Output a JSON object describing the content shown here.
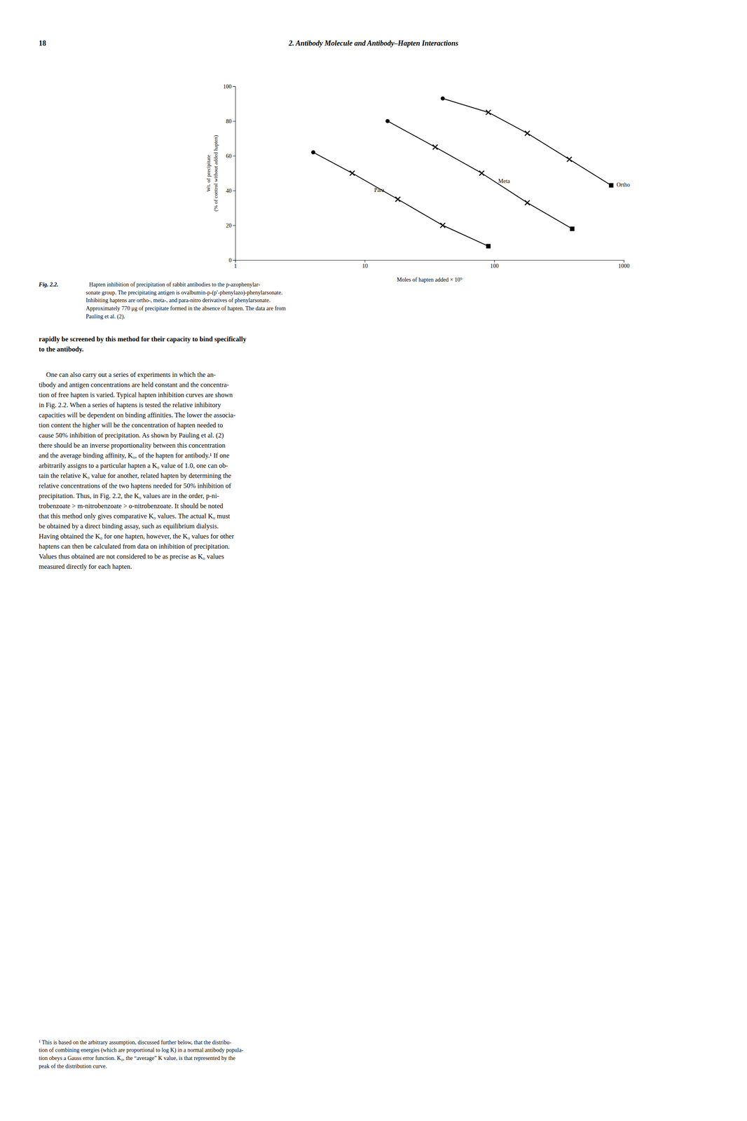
{
  "background_color": "#ffffff",
  "text_color": "#000000",
  "page_number": "18",
  "header": "2. Antibody Molecule and Antibody–Hapten Interactions",
  "chart_data": {
    "type": "line",
    "xlabel": "Moles of hapten added  × 10⁹",
    "ylabel": [
      "Wt. of precipitate",
      "(% of control without added hapten)"
    ],
    "log": "x",
    "xlim": [
      1,
      1000
    ],
    "xticks": [
      1,
      10,
      100,
      1000
    ],
    "ylim": [
      0,
      100
    ],
    "yticks": [
      0,
      20,
      40,
      60,
      80,
      100
    ],
    "grid": false,
    "marker": "x",
    "series": [
      {
        "name": "Para",
        "color": "#000000",
        "x": [
          4.0,
          8.0,
          18.0,
          40.0,
          90.0
        ],
        "values": [
          62,
          50,
          35,
          20,
          8
        ],
        "label": {
          "x": 11.0,
          "y": 40
        }
      },
      {
        "name": "Meta",
        "color": "#000000",
        "x": [
          15.0,
          35.0,
          80.0,
          180.0,
          400.0
        ],
        "values": [
          80,
          65,
          50,
          33,
          18
        ],
        "label": {
          "x": 100.0,
          "y": 45
        }
      },
      {
        "name": "Ortho",
        "color": "#000000",
        "x": [
          40.0,
          90.0,
          180.0,
          380.0,
          800.0
        ],
        "values": [
          93,
          85,
          73,
          58,
          43
        ],
        "label": {
          "x": 820.0,
          "y": 43
        }
      }
    ]
  },
  "caption_label": "Fig. 2.2.",
  "caption": [
    "Hapten inhibition of precipitation of rabbit antibodies to the p-azophenylar-",
    "sonate group.  The precipitating antigen is ovalbumin-p-(p′-phenylazo)-phenylarsonate.",
    "Inhibiting haptens are ortho-, meta-, and para-nitro derivatives of phenylarsonate.",
    "Approximately 770 μg of precipitate formed in the absence of hapten. The data are from",
    "Pauling et al. (2)."
  ],
  "body_bold": [
    "rapidly be screened by this method for their capacity to bind specifically",
    "to the antibody."
  ],
  "body": [
    "One can also carry out a series of experiments in which the an-",
    "tibody and antigen concentrations are held constant and the concentra-",
    "tion of free hapten is varied. Typical hapten inhibition curves are shown",
    "in Fig. 2.2. When a series of haptens is tested the relative inhibitory",
    "capacities will be dependent on binding affinities. The lower the associa-",
    "tion content the higher will be the concentration of hapten needed to",
    "cause 50% inhibition of precipitation. As shown by Pauling et al. (2)",
    "there should be an inverse proportionality between this concentration",
    "and the average binding affinity, K₀, of the hapten for antibody.¹ If one",
    "arbitrarily assigns to a particular hapten a K₀ value of 1.0, one can ob-",
    "tain the relative K₀ value for another, related hapten by determining the",
    "relative concentrations of the two haptens needed for 50% inhibition of",
    "precipitation. Thus, in Fig. 2.2, the K₀ values are in the order, p-ni-",
    "trobenzoate > m-nitrobenzoate > o-nitrobenzoate. It should be noted",
    "that this method only gives comparative K₀ values. The actual K₀ must",
    "be obtained by a direct binding assay, such as equilibrium dialysis.",
    "Having obtained the K₀ for one hapten, however, the K₀ values for other",
    "haptens can then be calculated from data on inhibition of precipitation.",
    "Values thus obtained are not considered to be as precise as K₀ values",
    "measured directly for each hapten."
  ],
  "footnote": [
    "¹ This is based on the arbitrary assumption, discussed further below, that the distribu-",
    "tion of combining energies (which are proportional to log K) in a normal antibody popula-",
    "tion obeys a Gauss error function. K₀, the “average” K value, is that represented by the",
    "peak of the distribution curve."
  ]
}
